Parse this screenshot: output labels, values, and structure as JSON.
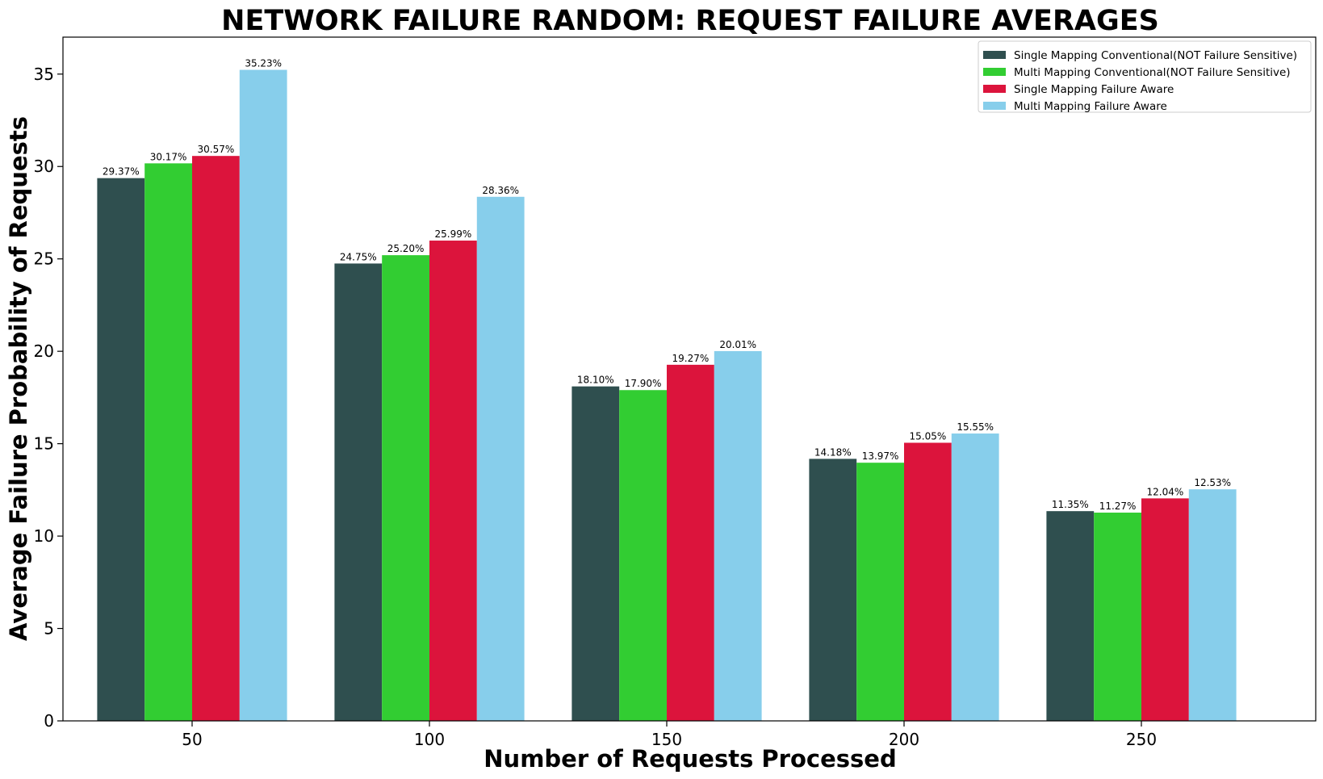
{
  "chart_data": {
    "type": "bar",
    "title": "NETWORK FAILURE RANDOM: REQUEST FAILURE AVERAGES",
    "xlabel": "Number of Requests Processed",
    "ylabel": "Average Failure Probability of Requests",
    "categories": [
      "50",
      "100",
      "150",
      "200",
      "250"
    ],
    "ylim": [
      0,
      37
    ],
    "yticks": [
      0,
      5,
      10,
      15,
      20,
      25,
      30,
      35
    ],
    "ytick_labels": [
      "0",
      "5",
      "10",
      "15",
      "20",
      "25",
      "30",
      "35"
    ],
    "grid": false,
    "legend_position": "top-right",
    "series": [
      {
        "name": "Single Mapping Conventional(NOT Failure Sensitive)",
        "color": "#2f4f4f",
        "values": [
          29.37,
          24.75,
          18.1,
          14.18,
          11.35
        ],
        "labels": [
          "29.37%",
          "24.75%",
          "18.10%",
          "14.18%",
          "11.35%"
        ]
      },
      {
        "name": "Multi Mapping Conventional(NOT Failure Sensitive)",
        "color": "#32cd32",
        "values": [
          30.17,
          25.2,
          17.9,
          13.97,
          11.27
        ],
        "labels": [
          "30.17%",
          "25.20%",
          "17.90%",
          "13.97%",
          "11.27%"
        ]
      },
      {
        "name": "Single Mapping Failure Aware",
        "color": "#dc143c",
        "values": [
          30.57,
          25.99,
          19.27,
          15.05,
          12.04
        ],
        "labels": [
          "30.57%",
          "25.99%",
          "19.27%",
          "15.05%",
          "12.04%"
        ]
      },
      {
        "name": "Multi Mapping Failure Aware",
        "color": "#87ceeb",
        "values": [
          35.23,
          28.36,
          20.01,
          15.55,
          12.53
        ],
        "labels": [
          "35.23%",
          "28.36%",
          "20.01%",
          "15.55%",
          "12.53%"
        ]
      }
    ]
  }
}
